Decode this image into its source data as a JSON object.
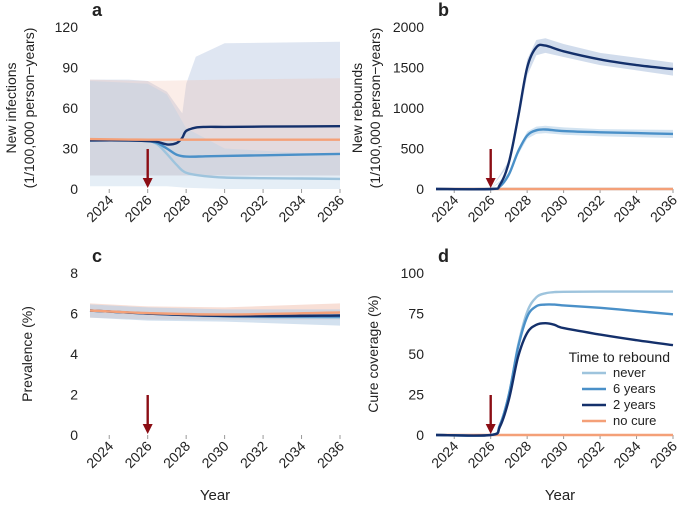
{
  "xlabel": "Year",
  "legend": {
    "title": "Time to rebound",
    "entries": [
      {
        "label": "never",
        "color": "#9ec4dd"
      },
      {
        "label": "6 years",
        "color": "#4a90c8"
      },
      {
        "label": "2 years",
        "color": "#14306b"
      },
      {
        "label": "no cure",
        "color": "#f4a078"
      }
    ]
  },
  "arrow_color": "#8b0d14",
  "chart_data": [
    {
      "type": "line",
      "panel": "a",
      "ylabel_line1": "New infections",
      "ylabel_line2": "(1/100,000 person−years)",
      "ylim": [
        0,
        120
      ],
      "yticks": [
        "0",
        "30",
        "60",
        "90",
        "120"
      ],
      "xlim": [
        2023,
        2036
      ],
      "xticks": [
        "2024",
        "2026",
        "2028",
        "2030",
        "2032",
        "2034",
        "2036"
      ],
      "arrow_year": 2026,
      "bands": [
        {
          "name": "2 years",
          "color": "#8da7cf",
          "opacity": 0.28,
          "x": [
            2023,
            2025,
            2026,
            2027,
            2027.5,
            2027.8,
            2028,
            2028.5,
            2030,
            2036
          ],
          "lower": [
            10,
            10,
            10,
            10,
            10,
            10,
            10,
            10,
            10,
            10
          ],
          "upper": [
            81,
            81,
            80,
            72,
            62,
            56,
            78,
            98,
            108,
            109
          ]
        },
        {
          "name": "no cure",
          "color": "#f0b9a4",
          "opacity": 0.25,
          "x": [
            2023,
            2026,
            2030,
            2036
          ],
          "lower": [
            10,
            10,
            10,
            10
          ],
          "upper": [
            81,
            80,
            81,
            82
          ]
        },
        {
          "name": "never",
          "color": "#b5cde4",
          "opacity": 0.35,
          "x": [
            2023,
            2026,
            2027,
            2028,
            2030,
            2036
          ],
          "lower": [
            2,
            2,
            2,
            1,
            0,
            0
          ],
          "upper": [
            80,
            78,
            70,
            45,
            30,
            25
          ]
        }
      ],
      "series": [
        {
          "name": "never",
          "color": "#9ec4dd",
          "x": [
            2023,
            2025,
            2026,
            2026.5,
            2027,
            2027.5,
            2028,
            2029,
            2030,
            2032,
            2034,
            2036
          ],
          "values": [
            36,
            36,
            35.5,
            33,
            26,
            18,
            12,
            9.5,
            8.5,
            8,
            7.8,
            7.5
          ]
        },
        {
          "name": "6 years",
          "color": "#4a90c8",
          "x": [
            2023,
            2025,
            2026,
            2026.5,
            2027,
            2027.5,
            2028,
            2029,
            2030,
            2032,
            2034,
            2036
          ],
          "values": [
            36,
            36,
            35.5,
            34,
            30,
            25.5,
            24,
            24.2,
            24.5,
            25,
            25.5,
            26
          ]
        },
        {
          "name": "2 years",
          "color": "#14306b",
          "x": [
            2023,
            2025,
            2026,
            2026.5,
            2027,
            2027.5,
            2027.8,
            2028,
            2028.5,
            2029,
            2030,
            2032,
            2036
          ],
          "values": [
            36,
            36,
            35.5,
            35,
            33,
            34,
            38,
            43,
            45.5,
            46,
            46,
            46.2,
            46.5
          ]
        },
        {
          "name": "no cure",
          "color": "#f4a078",
          "x": [
            2023,
            2026,
            2030,
            2036
          ],
          "values": [
            37,
            36.5,
            36.5,
            36.5
          ]
        }
      ]
    },
    {
      "type": "line",
      "panel": "b",
      "ylabel_line1": "New rebounds",
      "ylabel_line2": "(1/100,000 person−years)",
      "ylim": [
        0,
        2000
      ],
      "yticks": [
        "0",
        "500",
        "1000",
        "1500",
        "2000"
      ],
      "xlim": [
        2023,
        2036
      ],
      "xticks": [
        "2024",
        "2026",
        "2028",
        "2030",
        "2032",
        "2034",
        "2036"
      ],
      "arrow_year": 2026,
      "bands": [
        {
          "name": "2 years",
          "color": "#8da7cf",
          "opacity": 0.4,
          "x": [
            2026,
            2027,
            2027.5,
            2028,
            2028.5,
            2029,
            2030,
            2032,
            2036
          ],
          "lower": [
            0,
            300,
            800,
            1400,
            1650,
            1680,
            1630,
            1530,
            1400
          ],
          "upper": [
            0,
            350,
            950,
            1600,
            1840,
            1860,
            1790,
            1680,
            1560
          ]
        },
        {
          "name": "6 years",
          "color": "#8fb9dc",
          "opacity": 0.4,
          "x": [
            2026,
            2027,
            2027.5,
            2028,
            2028.5,
            2029,
            2030,
            2032,
            2036
          ],
          "lower": [
            0,
            150,
            420,
            620,
            680,
            690,
            670,
            650,
            630
          ],
          "upper": [
            0,
            200,
            500,
            710,
            770,
            780,
            760,
            740,
            730
          ]
        }
      ],
      "series": [
        {
          "name": "never",
          "color": "#9ec4dd",
          "x": [
            2023,
            2036
          ],
          "values": [
            0,
            0
          ]
        },
        {
          "name": "no cure",
          "color": "#f4a078",
          "x": [
            2023,
            2036
          ],
          "values": [
            0,
            0
          ]
        },
        {
          "name": "6 years",
          "color": "#4a90c8",
          "x": [
            2023,
            2026,
            2026.5,
            2027,
            2027.5,
            2028,
            2028.5,
            2029,
            2030,
            2032,
            2034,
            2036
          ],
          "values": [
            0,
            0,
            30,
            180,
            460,
            660,
            725,
            735,
            715,
            700,
            690,
            680
          ]
        },
        {
          "name": "2 years",
          "color": "#14306b",
          "x": [
            2023,
            2026,
            2026.5,
            2027,
            2027.5,
            2028,
            2028.5,
            2029,
            2030,
            2032,
            2034,
            2036
          ],
          "values": [
            0,
            0,
            50,
            330,
            880,
            1500,
            1750,
            1770,
            1700,
            1600,
            1530,
            1480
          ]
        }
      ]
    },
    {
      "type": "line",
      "panel": "c",
      "ylabel_line1": "Prevalence (%)",
      "ylim": [
        0,
        8
      ],
      "yticks": [
        "0",
        "2",
        "4",
        "6",
        "8"
      ],
      "xlim": [
        2023,
        2036
      ],
      "xticks": [
        "2024",
        "2026",
        "2028",
        "2030",
        "2032",
        "2034",
        "2036"
      ],
      "arrow_year": 2026,
      "bands": [
        {
          "name": "no cure",
          "color": "#f0b9a4",
          "opacity": 0.45,
          "x": [
            2023,
            2026,
            2030,
            2036
          ],
          "lower": [
            5.8,
            5.7,
            5.7,
            5.7
          ],
          "upper": [
            6.5,
            6.35,
            6.3,
            6.5
          ]
        },
        {
          "name": "cure",
          "color": "#b5cde4",
          "opacity": 0.6,
          "x": [
            2023,
            2026,
            2030,
            2036
          ],
          "lower": [
            5.8,
            5.65,
            5.6,
            5.4
          ],
          "upper": [
            6.45,
            6.3,
            6.2,
            6.2
          ]
        }
      ],
      "series": [
        {
          "name": "never",
          "color": "#9ec4dd",
          "x": [
            2023,
            2026,
            2030,
            2036
          ],
          "values": [
            6.15,
            6.0,
            5.85,
            5.8
          ]
        },
        {
          "name": "6 years",
          "color": "#4a90c8",
          "x": [
            2023,
            2026,
            2030,
            2036
          ],
          "values": [
            6.15,
            6.0,
            5.87,
            5.85
          ]
        },
        {
          "name": "2 years",
          "color": "#14306b",
          "x": [
            2023,
            2026,
            2030,
            2036
          ],
          "values": [
            6.15,
            6.0,
            5.88,
            5.9
          ]
        },
        {
          "name": "no cure",
          "color": "#f4a078",
          "x": [
            2023,
            2026,
            2030,
            2036
          ],
          "values": [
            6.15,
            6.02,
            5.95,
            6.05
          ]
        }
      ]
    },
    {
      "type": "line",
      "panel": "d",
      "ylabel_line1": "Cure coverage (%)",
      "ylim": [
        0,
        100
      ],
      "yticks": [
        "0",
        "25",
        "50",
        "75",
        "100"
      ],
      "xlim": [
        2023,
        2036
      ],
      "xticks": [
        "2024",
        "2026",
        "2028",
        "2030",
        "2032",
        "2034",
        "2036"
      ],
      "arrow_year": 2026,
      "bands": [],
      "series": [
        {
          "name": "no cure",
          "color": "#f4a078",
          "x": [
            2023,
            2036
          ],
          "values": [
            0,
            0
          ]
        },
        {
          "name": "never",
          "color": "#9ec4dd",
          "x": [
            2023,
            2026,
            2026.5,
            2027,
            2027.5,
            2028,
            2028.5,
            2029,
            2029.5,
            2030,
            2032,
            2036
          ],
          "values": [
            0,
            0,
            6,
            25,
            55,
            76,
            85,
            87.5,
            88.2,
            88.4,
            88.5,
            88.5
          ]
        },
        {
          "name": "6 years",
          "color": "#4a90c8",
          "x": [
            2023,
            2026,
            2026.5,
            2027,
            2027.5,
            2028,
            2028.5,
            2029,
            2029.5,
            2030,
            2032,
            2034,
            2036
          ],
          "values": [
            0,
            0,
            6,
            25,
            54,
            73,
            79.5,
            80.5,
            80.5,
            80,
            78.5,
            76.5,
            74.5
          ]
        },
        {
          "name": "2 years",
          "color": "#14306b",
          "x": [
            2023,
            2026,
            2026.5,
            2027,
            2027.5,
            2028,
            2028.5,
            2029,
            2029.5,
            2030,
            2032,
            2034,
            2036
          ],
          "values": [
            0,
            0,
            5,
            22,
            48,
            63,
            68,
            69,
            68,
            66,
            62,
            58.5,
            55.5
          ]
        }
      ]
    }
  ]
}
